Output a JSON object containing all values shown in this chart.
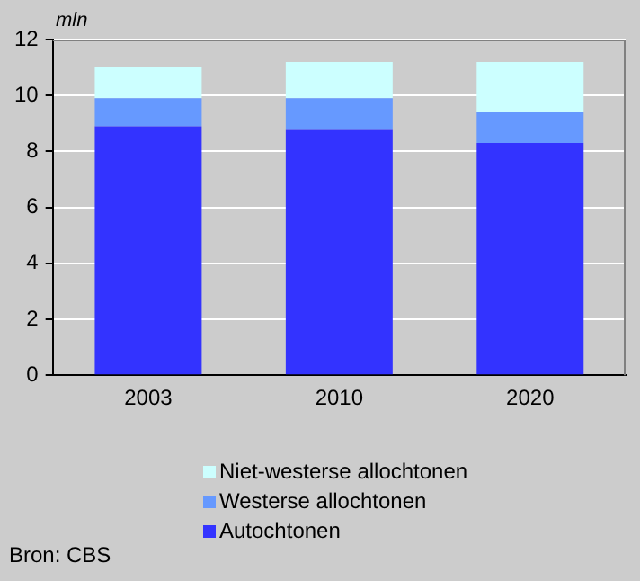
{
  "chart_data": {
    "type": "bar",
    "stacked": true,
    "ylabel": "mln",
    "categories": [
      "2003",
      "2010",
      "2020"
    ],
    "series": [
      {
        "name": "Autochtonen",
        "color": "#3333ff",
        "values": [
          8.9,
          8.8,
          8.3
        ]
      },
      {
        "name": "Westerse allochtonen",
        "color": "#6699ff",
        "values": [
          1.0,
          1.1,
          1.1
        ]
      },
      {
        "name": "Niet-westerse allochtonen",
        "color": "#ccffff",
        "values": [
          1.1,
          1.3,
          1.8
        ]
      }
    ],
    "ylim": [
      0,
      12
    ],
    "yticks": [
      0,
      2,
      4,
      6,
      8,
      10,
      12
    ],
    "grid": "y",
    "legend": "bottom",
    "annotations": [
      "Bron: CBS"
    ]
  }
}
